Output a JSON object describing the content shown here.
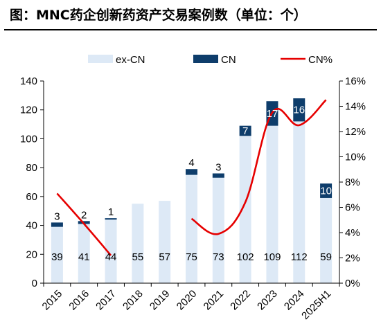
{
  "title": "图：MNC药企创新药资产交易案例数（单位：个）",
  "chart_data": {
    "type": "bar",
    "stacked": true,
    "categories": [
      "2015",
      "2016",
      "2017",
      "2018",
      "2019",
      "2020",
      "2021",
      "2022",
      "2023",
      "2024",
      "2025H1"
    ],
    "series": [
      {
        "name": "ex-CN",
        "values": [
          39,
          41,
          44,
          55,
          57,
          75,
          73,
          102,
          109,
          112,
          59
        ],
        "color": "#dde9f6"
      },
      {
        "name": "CN",
        "values": [
          3,
          2,
          1,
          0,
          0,
          4,
          3,
          7,
          17,
          16,
          10
        ],
        "color": "#0e3d6b"
      }
    ],
    "line_series": {
      "name": "CN%",
      "color": "#e60000",
      "values": [
        7.1,
        4.7,
        2.2,
        null,
        null,
        5.1,
        3.9,
        6.4,
        13.5,
        12.5,
        14.5
      ]
    },
    "bar_labels": {
      "ex-CN": [
        "39",
        "41",
        "44",
        "55",
        "57",
        "75",
        "73",
        "102",
        "109",
        "112",
        "59"
      ],
      "CN": [
        "3",
        "2",
        "1",
        "",
        "",
        "4",
        "3",
        "7",
        "17",
        "16",
        "10"
      ]
    },
    "ylim": [
      0,
      140
    ],
    "yticks": [
      "0",
      "20",
      "40",
      "60",
      "80",
      "100",
      "120",
      "140"
    ],
    "y2lim": [
      0,
      16
    ],
    "y2ticks": [
      "0%",
      "2%",
      "4%",
      "6%",
      "8%",
      "10%",
      "12%",
      "14%",
      "16%"
    ],
    "legend_position": "top",
    "grid": false
  }
}
